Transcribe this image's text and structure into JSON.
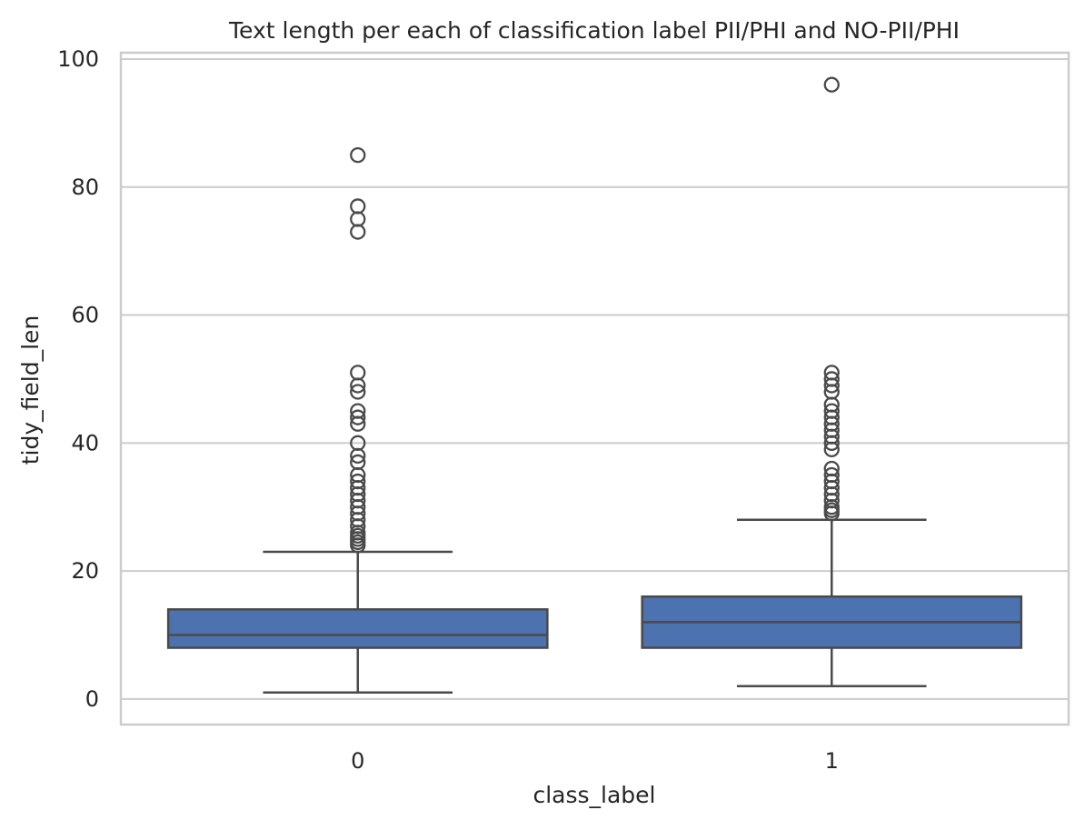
{
  "chart_data": {
    "type": "box",
    "title": "Text length per each of classification label PII/PHI and NO-PII/PHI",
    "xlabel": "class_label",
    "ylabel": "tidy_field_len",
    "categories": [
      "0",
      "1"
    ],
    "ylim": [
      -4,
      101
    ],
    "yticks": [
      0,
      20,
      40,
      60,
      80,
      100
    ],
    "grid": true,
    "legend": "none",
    "box_color": "#4c72b0",
    "line_color": "#4a4a4a",
    "grid_color": "#cccccc",
    "boxes": [
      {
        "category": "0",
        "whisker_low": 1,
        "q1": 8,
        "median": 10,
        "q3": 14,
        "whisker_high": 23,
        "outliers": [
          24,
          24.5,
          25,
          25.5,
          26,
          27,
          28,
          29,
          30,
          31,
          32,
          33,
          34,
          35,
          37,
          38,
          40,
          43,
          44,
          45,
          48,
          49,
          51,
          73,
          75,
          77,
          85
        ]
      },
      {
        "category": "1",
        "whisker_low": 2,
        "q1": 8,
        "median": 12,
        "q3": 16,
        "whisker_high": 28,
        "outliers": [
          29,
          29.5,
          30,
          31,
          32,
          33,
          34,
          35,
          36,
          39,
          40,
          41,
          42,
          43,
          44,
          45,
          46,
          48,
          49,
          50,
          51,
          96
        ]
      }
    ]
  }
}
